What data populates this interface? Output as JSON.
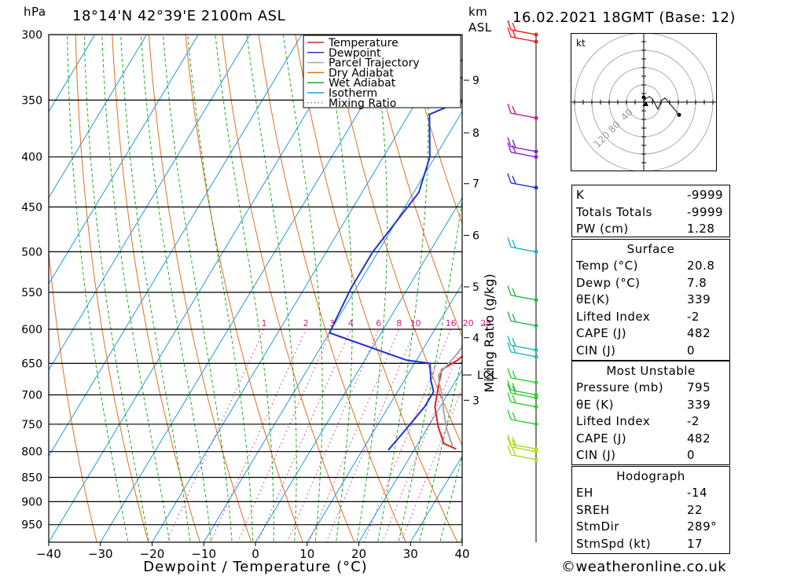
{
  "header": {
    "location": "18°14'N  42°39'E  2100m  ASL",
    "datetime": "16.02.2021  18GMT  (Base: 12)",
    "hpa_label": "hPa",
    "km_label": "km",
    "asl_label": "ASL"
  },
  "footer": {
    "copyright": "©weatheronline.co.uk"
  },
  "chart_data": {
    "type": "line",
    "title": "",
    "xlabel": "Dewpoint / Temperature (°C)",
    "ylabel": "hPa",
    "right_axis_label": "Mixing Ratio (g/kg)",
    "xlim": [
      -40,
      40
    ],
    "ylim": [
      990,
      300
    ],
    "pressure_levels": [
      300,
      350,
      400,
      450,
      500,
      550,
      600,
      650,
      700,
      750,
      800,
      850,
      900,
      950
    ],
    "x_ticks": [
      -40,
      -30,
      -20,
      -10,
      0,
      10,
      20,
      30,
      40
    ],
    "km_ticks": [
      {
        "label": "9",
        "p": 334
      },
      {
        "label": "8",
        "p": 378
      },
      {
        "label": "7",
        "p": 426
      },
      {
        "label": "6",
        "p": 481
      },
      {
        "label": "5",
        "p": 543
      },
      {
        "label": "4",
        "p": 612
      },
      {
        "label": "3",
        "p": 709
      }
    ],
    "lcl": {
      "label": "LCL",
      "p": 668
    },
    "mixing_ratio_labels": [
      "1",
      "2",
      "3",
      "4",
      "6",
      "8",
      "10",
      "16",
      "20",
      "25"
    ],
    "mixing_ratios": [
      1,
      2,
      3,
      4,
      6,
      8,
      10,
      16,
      20,
      25
    ],
    "legend": {
      "position": "top-right",
      "entries": [
        {
          "name": "Temperature",
          "color": "#dd2222"
        },
        {
          "name": "Dewpoint",
          "color": "#2233cc"
        },
        {
          "name": "Parcel Trajectory",
          "color": "#a8a8a8"
        },
        {
          "name": "Dry Adiabat",
          "color": "#e07020"
        },
        {
          "name": "Wet Adiabat",
          "color": "#22aa22"
        },
        {
          "name": "Isotherm",
          "color": "#2299dd"
        },
        {
          "name": "Mixing Ratio",
          "color": "#cc2288"
        }
      ]
    },
    "series": [
      {
        "name": "Temperature",
        "color": "#dd2222",
        "points": [
          [
            28,
            795
          ],
          [
            25,
            785
          ],
          [
            22,
            755
          ],
          [
            19,
            720
          ],
          [
            18,
            700
          ],
          [
            17,
            680
          ],
          [
            16,
            660
          ],
          [
            18,
            645
          ],
          [
            19,
            630
          ],
          [
            19,
            605
          ],
          [
            17,
            585
          ],
          [
            14,
            555
          ],
          [
            11,
            510
          ],
          [
            7,
            460
          ],
          [
            5,
            430
          ],
          [
            3,
            400
          ],
          [
            0,
            370
          ],
          [
            -1,
            352
          ],
          [
            -1,
            335
          ],
          [
            0,
            330
          ],
          [
            -1,
            310
          ],
          [
            -1,
            300
          ]
        ]
      },
      {
        "name": "Dewpoint",
        "color": "#2233cc",
        "points": [
          [
            15,
            797
          ],
          [
            16,
            760
          ],
          [
            17,
            720
          ],
          [
            17,
            695
          ],
          [
            15,
            675
          ],
          [
            13,
            650
          ],
          [
            8,
            645
          ],
          [
            -10,
            605
          ],
          [
            -11,
            545
          ],
          [
            -11,
            500
          ],
          [
            -9,
            435
          ],
          [
            -11,
            400
          ],
          [
            -16,
            362
          ],
          [
            -12,
            352
          ],
          [
            -3,
            346
          ],
          [
            -8,
            335
          ],
          [
            -26,
            327
          ],
          [
            -9,
            313
          ],
          [
            -14,
            300
          ]
        ]
      },
      {
        "name": "Parcel Trajectory",
        "color": "#a8a8a8",
        "points": [
          [
            27,
            790
          ],
          [
            24,
            760
          ],
          [
            21,
            725
          ],
          [
            19,
            700
          ],
          [
            17,
            680
          ],
          [
            16,
            668
          ],
          [
            17,
            640
          ],
          [
            18,
            600
          ],
          [
            16,
            550
          ],
          [
            14,
            490
          ],
          [
            12,
            440
          ],
          [
            10,
            400
          ],
          [
            7,
            365
          ],
          [
            5,
            340
          ],
          [
            3,
            318
          ],
          [
            0,
            300
          ]
        ]
      }
    ],
    "wind_barb_levels": [
      300,
      305,
      365,
      395,
      400,
      430,
      500,
      560,
      595,
      630,
      640,
      680,
      700,
      705,
      720,
      750,
      795,
      800,
      815
    ]
  },
  "hodograph": {
    "unit_label": "kt",
    "ring_labels": [
      "40",
      "80",
      "120"
    ],
    "trace": [
      [
        0,
        0
      ],
      [
        1,
        -2
      ],
      [
        3,
        -5
      ],
      [
        8,
        -8
      ],
      [
        12,
        -5
      ],
      [
        20,
        10
      ],
      [
        25,
        -2
      ],
      [
        30,
        -6
      ],
      [
        50,
        18
      ]
    ]
  },
  "indices": {
    "general": [
      {
        "label": "K",
        "value": "-9999"
      },
      {
        "label": "Totals Totals",
        "value": "-9999"
      },
      {
        "label": "PW (cm)",
        "value": "1.28"
      }
    ],
    "surface": {
      "title": "Surface",
      "rows": [
        {
          "label": "Temp (°C)",
          "value": "20.8"
        },
        {
          "label": "Dewp (°C)",
          "value": "7.8"
        },
        {
          "label": "θE(K)",
          "value": "339"
        },
        {
          "label": "Lifted Index",
          "value": "-2"
        },
        {
          "label": "CAPE (J)",
          "value": "482"
        },
        {
          "label": "CIN (J)",
          "value": "0"
        }
      ]
    },
    "most_unstable": {
      "title": "Most Unstable",
      "rows": [
        {
          "label": "Pressure (mb)",
          "value": "795"
        },
        {
          "label": "θE (K)",
          "value": "339"
        },
        {
          "label": "Lifted Index",
          "value": "-2"
        },
        {
          "label": "CAPE (J)",
          "value": "482"
        },
        {
          "label": "CIN (J)",
          "value": "0"
        }
      ]
    },
    "hodograph_stats": {
      "title": "Hodograph",
      "rows": [
        {
          "label": "EH",
          "value": "-14"
        },
        {
          "label": "SREH",
          "value": "22"
        },
        {
          "label": "StmDir",
          "value": "289°"
        },
        {
          "label": "StmSpd (kt)",
          "value": "17"
        }
      ]
    }
  }
}
